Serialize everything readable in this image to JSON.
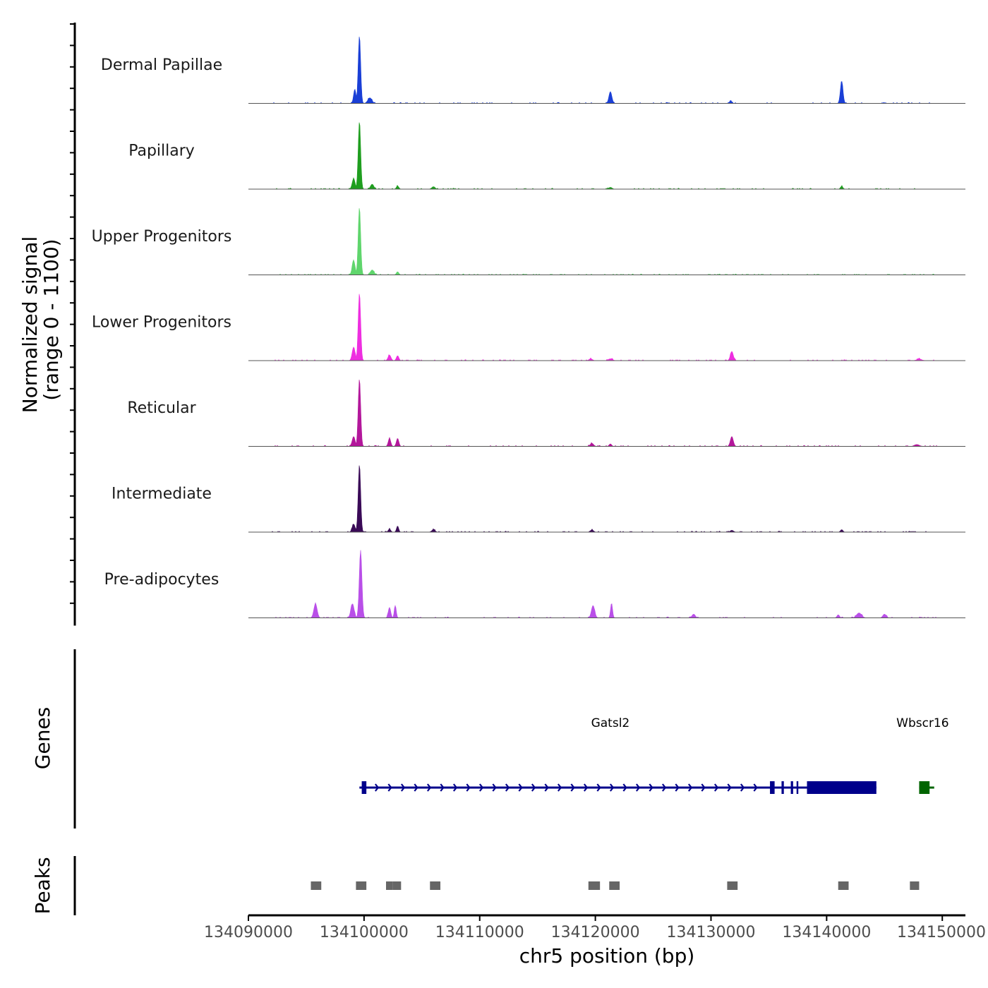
{
  "chart_data": {
    "type": "area",
    "title": "",
    "ylabel_line1": "Normalized signal",
    "ylabel_line2": "(range 0 - 1100)",
    "y_range": [
      0,
      1100
    ],
    "xlabel": "chr5 position (bp)",
    "xlim": [
      134090000,
      134152000
    ],
    "x_ticks": [
      134090000,
      134100000,
      134110000,
      134120000,
      134130000,
      134140000,
      134150000
    ],
    "x_tick_labels": [
      "134090000",
      "134100000",
      "134110000",
      "134120000",
      "134130000",
      "134140000",
      "134150000"
    ],
    "series": [
      {
        "name": "Dermal Papillae",
        "color": "#1a3fd6",
        "peaks": [
          {
            "pos": 134099600,
            "height": 1100,
            "width": 150
          },
          {
            "pos": 134099200,
            "height": 230,
            "width": 150
          },
          {
            "pos": 134100500,
            "height": 90,
            "width": 250
          },
          {
            "pos": 134121300,
            "height": 190,
            "width": 180
          },
          {
            "pos": 134131700,
            "height": 50,
            "width": 120
          },
          {
            "pos": 134141300,
            "height": 360,
            "width": 160
          }
        ]
      },
      {
        "name": "Papillary",
        "color": "#1f9e1f",
        "peaks": [
          {
            "pos": 134099600,
            "height": 1100,
            "width": 150
          },
          {
            "pos": 134099100,
            "height": 170,
            "width": 180
          },
          {
            "pos": 134100700,
            "height": 80,
            "width": 200
          },
          {
            "pos": 134102900,
            "height": 50,
            "width": 150
          },
          {
            "pos": 134106000,
            "height": 40,
            "width": 200
          },
          {
            "pos": 134121300,
            "height": 30,
            "width": 200
          },
          {
            "pos": 134141300,
            "height": 45,
            "width": 150
          }
        ]
      },
      {
        "name": "Upper Progenitors",
        "color": "#5fd56c",
        "peaks": [
          {
            "pos": 134099600,
            "height": 1100,
            "width": 150
          },
          {
            "pos": 134099100,
            "height": 230,
            "width": 180
          },
          {
            "pos": 134100700,
            "height": 80,
            "width": 220
          },
          {
            "pos": 134102900,
            "height": 50,
            "width": 150
          }
        ]
      },
      {
        "name": "Lower Progenitors",
        "color": "#ee2ee0",
        "peaks": [
          {
            "pos": 134099600,
            "height": 1100,
            "width": 150
          },
          {
            "pos": 134099100,
            "height": 220,
            "width": 180
          },
          {
            "pos": 134102200,
            "height": 90,
            "width": 180
          },
          {
            "pos": 134102900,
            "height": 80,
            "width": 150
          },
          {
            "pos": 134119600,
            "height": 30,
            "width": 200
          },
          {
            "pos": 134121300,
            "height": 30,
            "width": 250
          },
          {
            "pos": 134131800,
            "height": 150,
            "width": 180
          },
          {
            "pos": 134148000,
            "height": 25,
            "width": 300
          }
        ]
      },
      {
        "name": "Reticular",
        "color": "#b3179b",
        "peaks": [
          {
            "pos": 134099600,
            "height": 1100,
            "width": 150
          },
          {
            "pos": 134099100,
            "height": 160,
            "width": 180
          },
          {
            "pos": 134102200,
            "height": 130,
            "width": 150
          },
          {
            "pos": 134102900,
            "height": 130,
            "width": 150
          },
          {
            "pos": 134119700,
            "height": 50,
            "width": 200
          },
          {
            "pos": 134121300,
            "height": 40,
            "width": 150
          },
          {
            "pos": 134131800,
            "height": 160,
            "width": 180
          },
          {
            "pos": 134147800,
            "height": 30,
            "width": 300
          }
        ]
      },
      {
        "name": "Intermediate",
        "color": "#3a0a57",
        "peaks": [
          {
            "pos": 134099600,
            "height": 1100,
            "width": 150
          },
          {
            "pos": 134099100,
            "height": 130,
            "width": 180
          },
          {
            "pos": 134102200,
            "height": 50,
            "width": 150
          },
          {
            "pos": 134102900,
            "height": 100,
            "width": 130
          },
          {
            "pos": 134106000,
            "height": 40,
            "width": 200
          },
          {
            "pos": 134119700,
            "height": 35,
            "width": 200
          },
          {
            "pos": 134131800,
            "height": 30,
            "width": 200
          },
          {
            "pos": 134141300,
            "height": 40,
            "width": 150
          }
        ]
      },
      {
        "name": "Pre-adipocytes",
        "color": "#b94fe8",
        "peaks": [
          {
            "pos": 134099700,
            "height": 1100,
            "width": 160
          },
          {
            "pos": 134095800,
            "height": 230,
            "width": 200
          },
          {
            "pos": 134099000,
            "height": 230,
            "width": 200
          },
          {
            "pos": 134102200,
            "height": 170,
            "width": 150
          },
          {
            "pos": 134102700,
            "height": 200,
            "width": 120
          },
          {
            "pos": 134119800,
            "height": 200,
            "width": 200
          },
          {
            "pos": 134121400,
            "height": 240,
            "width": 120
          },
          {
            "pos": 134128500,
            "height": 60,
            "width": 200
          },
          {
            "pos": 134141000,
            "height": 50,
            "width": 150
          },
          {
            "pos": 134142800,
            "height": 80,
            "width": 300
          },
          {
            "pos": 134145000,
            "height": 60,
            "width": 200
          }
        ]
      }
    ],
    "genes_panel_title": "Genes",
    "genes": [
      {
        "name": "Gatsl2",
        "strand": "+",
        "color": "#00008b",
        "start": 134099600,
        "end": 134144300,
        "exons": [
          [
            134099800,
            134100200
          ],
          [
            134135100,
            134135500
          ],
          [
            134136100,
            134136300
          ],
          [
            134136900,
            134137100
          ],
          [
            134137400,
            134137550
          ],
          [
            134138300,
            134144300
          ]
        ],
        "label_pos": 134121300
      },
      {
        "name": "Wbscr16",
        "strand": "-",
        "color": "#006400",
        "start": 134148000,
        "end": 134149300,
        "exons": [
          [
            134148000,
            134148900
          ]
        ],
        "label_pos": 134148300
      }
    ],
    "peaks_panel_title": "Peaks",
    "peak_regions": [
      {
        "start": 134095400,
        "end": 134096300
      },
      {
        "start": 134099300,
        "end": 134100200
      },
      {
        "start": 134101900,
        "end": 134102500
      },
      {
        "start": 134102500,
        "end": 134103200
      },
      {
        "start": 134105700,
        "end": 134106600
      },
      {
        "start": 134119400,
        "end": 134120400
      },
      {
        "start": 134121200,
        "end": 134122100
      },
      {
        "start": 134131400,
        "end": 134132300
      },
      {
        "start": 134141000,
        "end": 134141900
      },
      {
        "start": 134147200,
        "end": 134148000
      }
    ]
  }
}
